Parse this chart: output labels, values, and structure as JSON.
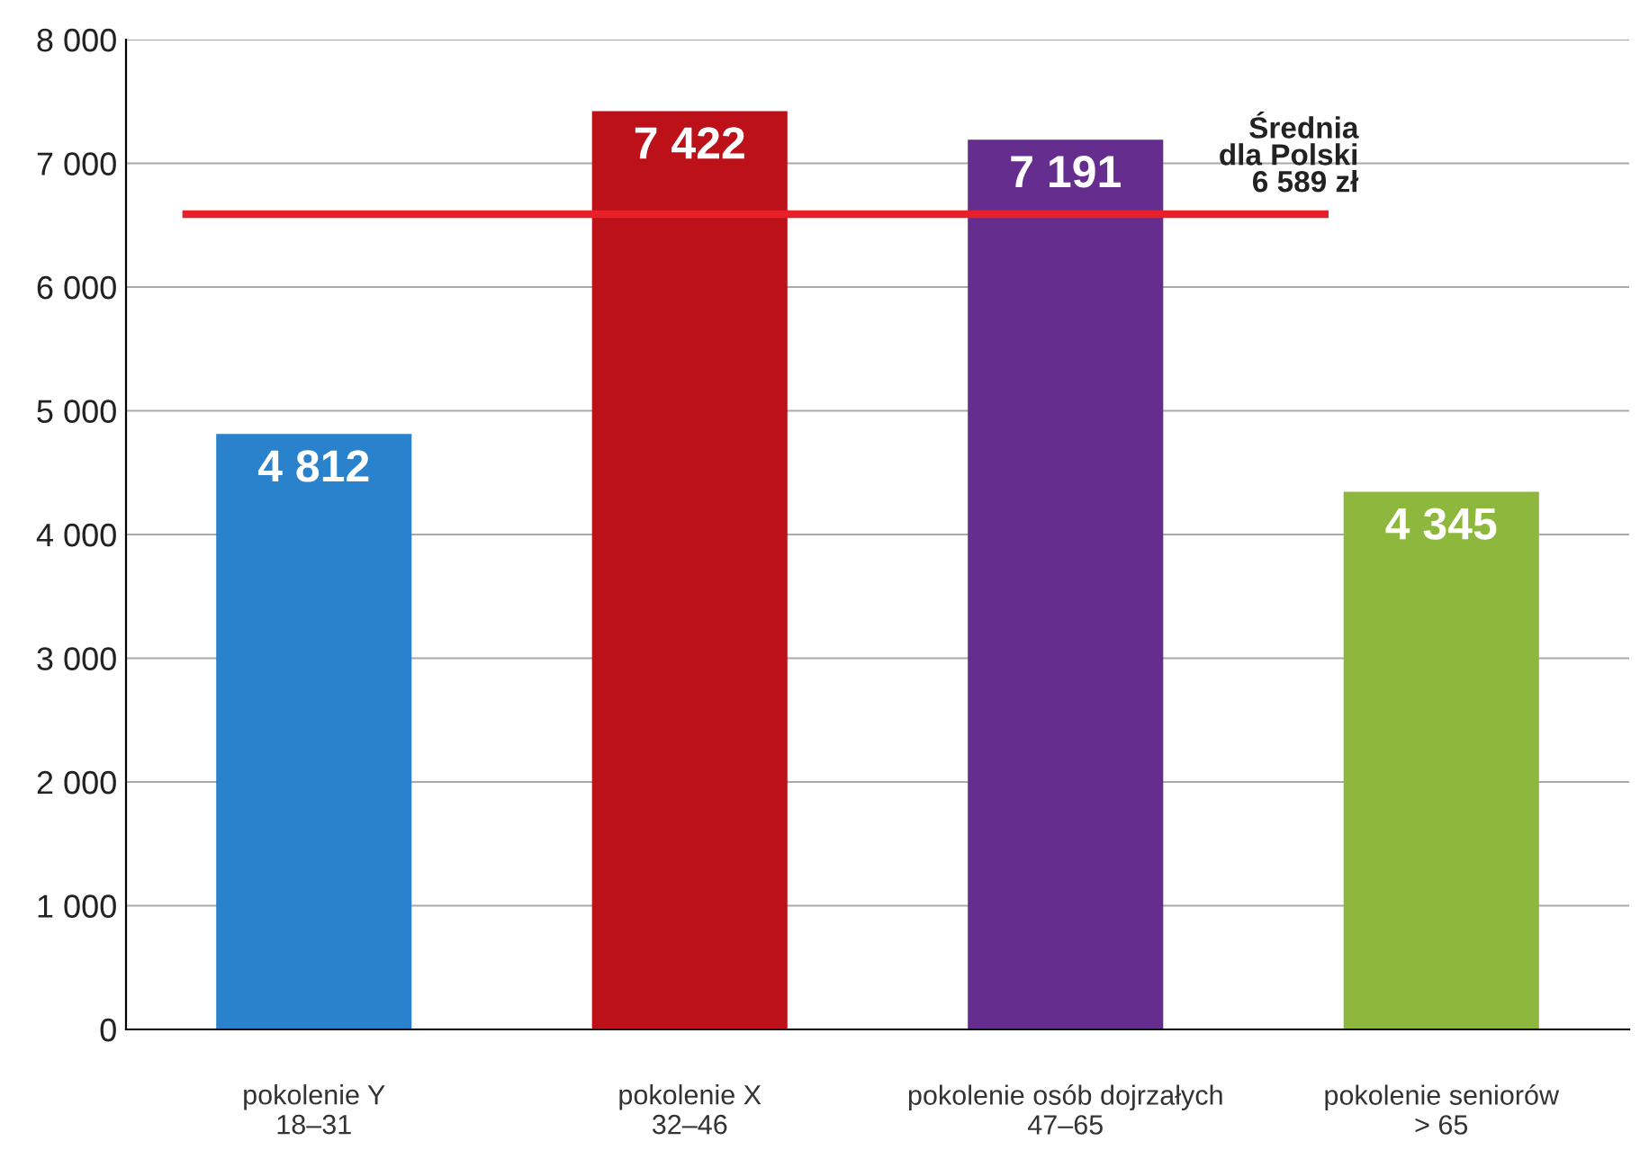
{
  "chart_data": {
    "type": "bar",
    "categories": [
      "pokolenie Y\n18–31",
      "pokolenie X\n32–46",
      "pokolenie osób dojrzałych\n47–65",
      "pokolenie seniorów\n> 65"
    ],
    "values": [
      4812,
      7422,
      7191,
      4345
    ],
    "colors": [
      "#2a82cc",
      "#bc1119",
      "#652d8e",
      "#8db83d"
    ],
    "value_labels": [
      "4 812",
      "7 422",
      "7 191",
      "4 345"
    ],
    "ylim": [
      0,
      8000
    ],
    "yticks": [
      {
        "value": 0,
        "label": "0"
      },
      {
        "value": 1000,
        "label": "1 000"
      },
      {
        "value": 2000,
        "label": "2 000"
      },
      {
        "value": 3000,
        "label": "3 000"
      },
      {
        "value": 4000,
        "label": "4 000"
      },
      {
        "value": 5000,
        "label": "5 000"
      },
      {
        "value": 6000,
        "label": "6 000"
      },
      {
        "value": 7000,
        "label": "7 000"
      },
      {
        "value": 8000,
        "label": "8 000"
      }
    ],
    "grid": "y",
    "ref_lines": [
      {
        "axis": "y",
        "value": 6589,
        "label": "Średnia\ndla Polski\n6 589 zł",
        "color": "#e8202a",
        "line_style": "solid"
      }
    ]
  }
}
